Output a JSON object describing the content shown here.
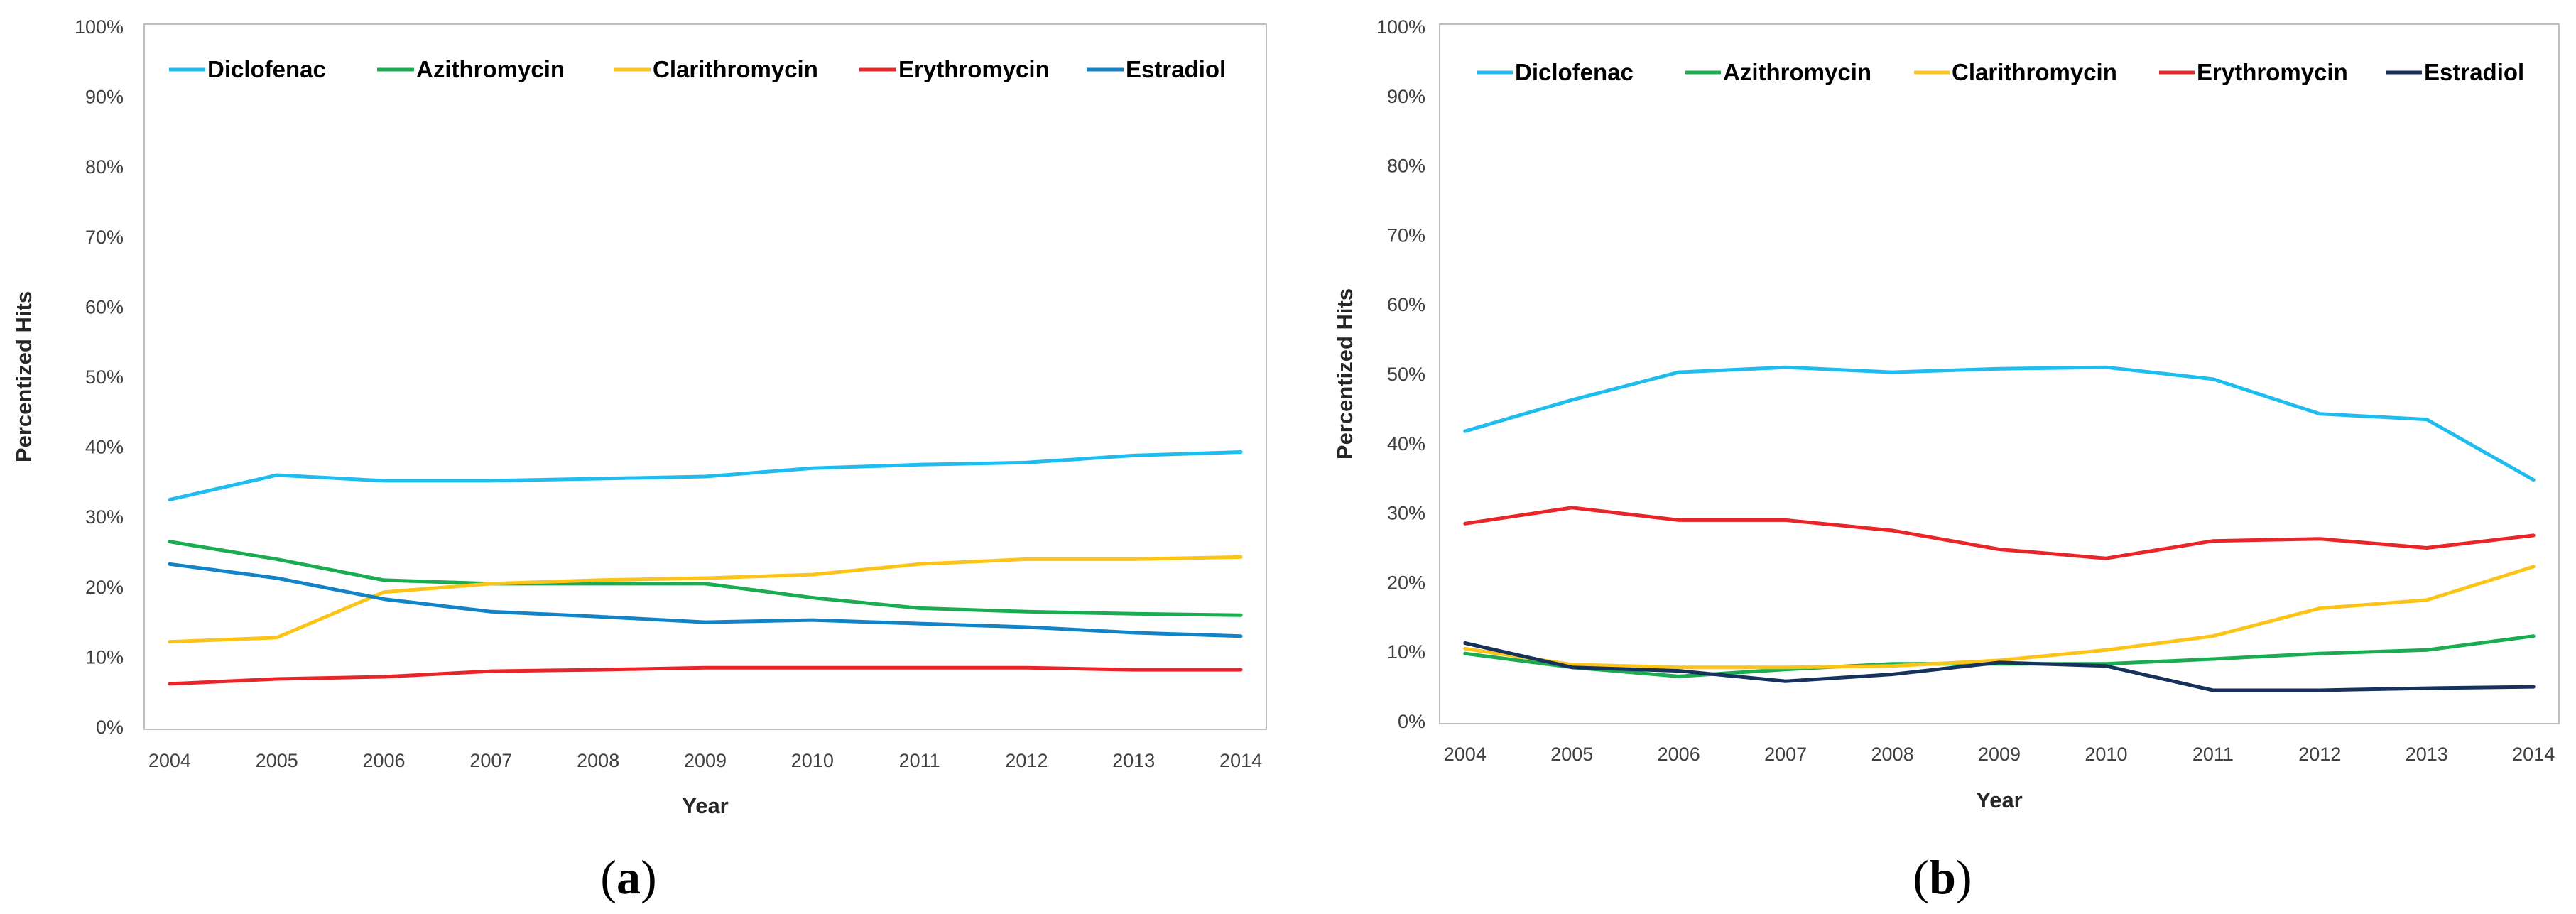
{
  "chart_data": [
    {
      "type": "line",
      "panel_label": "a",
      "xlabel": "Year",
      "ylabel": "Percentized Hits",
      "ylim": [
        0,
        100
      ],
      "y_ticks": [
        "0%",
        "10%",
        "20%",
        "30%",
        "40%",
        "50%",
        "60%",
        "70%",
        "80%",
        "90%",
        "100%"
      ],
      "x": [
        "2004",
        "2005",
        "2006",
        "2007",
        "2008",
        "2009",
        "2010",
        "2011",
        "2012",
        "2013",
        "2014"
      ],
      "legend_position": "top",
      "series": [
        {
          "name": "Diclofenac",
          "color": "#1fbcef",
          "values": [
            32.5,
            36,
            35.2,
            35.2,
            35.5,
            35.8,
            37,
            37.5,
            37.8,
            38.8,
            39.3
          ]
        },
        {
          "name": "Azithromycin",
          "color": "#1aac50",
          "values": [
            26.5,
            24,
            21,
            20.5,
            20.5,
            20.5,
            18.5,
            17,
            16.5,
            16.2,
            16
          ]
        },
        {
          "name": "Clarithromycin",
          "color": "#fcc419",
          "values": [
            12.2,
            12.8,
            19.3,
            20.5,
            21,
            21.3,
            21.8,
            23.3,
            24,
            24,
            24.3
          ]
        },
        {
          "name": "Erythromycin",
          "color": "#e8262a",
          "values": [
            6.2,
            6.9,
            7.2,
            8,
            8.2,
            8.5,
            8.5,
            8.5,
            8.5,
            8.2,
            8.2
          ]
        },
        {
          "name": "Estradiol",
          "color": "#1383c8",
          "values": [
            23.3,
            21.3,
            18.3,
            16.5,
            15.8,
            15,
            15.3,
            14.8,
            14.3,
            13.5,
            13
          ]
        }
      ]
    },
    {
      "type": "line",
      "panel_label": "b",
      "xlabel": "Year",
      "ylabel": "Percentized Hits",
      "ylim": [
        0,
        100
      ],
      "y_ticks": [
        "0%",
        "10%",
        "20%",
        "30%",
        "40%",
        "50%",
        "60%",
        "70%",
        "80%",
        "90%",
        "100%"
      ],
      "x": [
        "2004",
        "2005",
        "2006",
        "2007",
        "2008",
        "2009",
        "2010",
        "2011",
        "2012",
        "2013",
        "2014"
      ],
      "legend_position": "top",
      "series": [
        {
          "name": "Diclofenac",
          "color": "#1fbcef",
          "values": [
            41.8,
            46.3,
            50.3,
            51,
            50.3,
            50.8,
            51,
            49.3,
            44.3,
            43.5,
            34.8
          ]
        },
        {
          "name": "Azithromycin",
          "color": "#1aac50",
          "values": [
            9.8,
            7.8,
            6.5,
            7.5,
            8.3,
            8.3,
            8.3,
            9,
            9.8,
            10.3,
            12.3
          ]
        },
        {
          "name": "Clarithromycin",
          "color": "#fcc419",
          "values": [
            10.5,
            8.2,
            7.8,
            7.8,
            8,
            8.8,
            10.3,
            12.3,
            16.3,
            17.5,
            22.3
          ]
        },
        {
          "name": "Erythromycin",
          "color": "#e8262a",
          "values": [
            28.5,
            30.8,
            29,
            29,
            27.5,
            24.8,
            23.5,
            26,
            26.3,
            25,
            26.8
          ]
        },
        {
          "name": "Estradiol",
          "color": "#16325c",
          "values": [
            11.3,
            7.8,
            7.3,
            5.8,
            6.8,
            8.5,
            8,
            4.5,
            4.5,
            4.8,
            5
          ]
        }
      ]
    }
  ]
}
